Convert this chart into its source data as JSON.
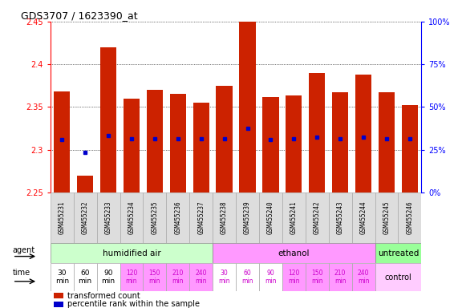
{
  "title": "GDS3707 / 1623390_at",
  "samples": [
    "GSM455231",
    "GSM455232",
    "GSM455233",
    "GSM455234",
    "GSM455235",
    "GSM455236",
    "GSM455237",
    "GSM455238",
    "GSM455239",
    "GSM455240",
    "GSM455241",
    "GSM455242",
    "GSM455243",
    "GSM455244",
    "GSM455245",
    "GSM455246"
  ],
  "bar_bottom": 2.25,
  "transformed_count": [
    2.368,
    2.27,
    2.42,
    2.36,
    2.37,
    2.365,
    2.355,
    2.375,
    2.45,
    2.362,
    2.364,
    2.39,
    2.367,
    2.388,
    2.367,
    2.352
  ],
  "percentile_rank": [
    2.312,
    2.297,
    2.317,
    2.313,
    2.313,
    2.313,
    2.313,
    2.313,
    2.325,
    2.312,
    2.313,
    2.315,
    2.313,
    2.315,
    2.313,
    2.313
  ],
  "ylim": [
    2.25,
    2.45
  ],
  "yticks_left": [
    2.25,
    2.3,
    2.35,
    2.4,
    2.45
  ],
  "yticks_right": [
    0,
    25,
    50,
    75,
    100
  ],
  "bar_color": "#cc2200",
  "marker_color": "#0000cc",
  "agent_groups": [
    {
      "label": "humidified air",
      "start": 0,
      "end": 7,
      "color": "#ccffcc"
    },
    {
      "label": "ethanol",
      "start": 7,
      "end": 14,
      "color": "#ff99ff"
    },
    {
      "label": "untreated",
      "start": 14,
      "end": 16,
      "color": "#99ff99"
    }
  ],
  "time_colors": [
    "#ffffff",
    "#ffffff",
    "#ffffff",
    "#ff99ff",
    "#ff99ff",
    "#ff99ff",
    "#ff99ff",
    "#ffffff",
    "#ffffff",
    "#ffffff",
    "#ff99ff",
    "#ff99ff",
    "#ff99ff",
    "#ff99ff"
  ],
  "time_labels_14": [
    "30\nmin",
    "60\nmin",
    "90\nmin",
    "120\nmin",
    "150\nmin",
    "210\nmin",
    "240\nmin",
    "30\nmin",
    "60\nmin",
    "90\nmin",
    "120\nmin",
    "150\nmin",
    "210\nmin",
    "240\nmin"
  ],
  "control_color": "#ffccff",
  "bar_width": 0.7
}
